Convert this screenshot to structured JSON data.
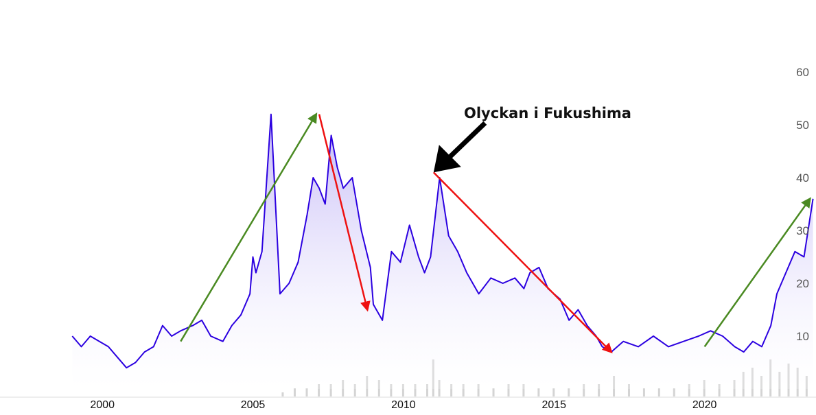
{
  "chart_data": {
    "type": "area",
    "title": "",
    "xlabel": "",
    "ylabel": "",
    "xlim": [
      1996.6,
      2023.7
    ],
    "ylim": [
      0,
      60
    ],
    "y_ticks": [
      10,
      20,
      30,
      40,
      50,
      60
    ],
    "x_ticks": [
      2000,
      2005,
      2010,
      2015,
      2020
    ],
    "y_axis_side": "right",
    "grid": false,
    "colors": {
      "line": "#2b00e0",
      "fill_top": "#b9acf5",
      "fill_bottom": "#ffffff",
      "volume": "#d4d4d4",
      "trend_up": "#4a8a22",
      "trend_down": "#ee1111",
      "annotation_arrow": "#000000"
    },
    "series": [
      {
        "type": "line",
        "x": [
          1999.0,
          1999.3,
          1999.6,
          1999.9,
          2000.2,
          2000.5,
          2000.8,
          2001.1,
          2001.4,
          2001.7,
          2002.0,
          2002.3,
          2002.6,
          2003.0,
          2003.3,
          2003.6,
          2004.0,
          2004.3,
          2004.6,
          2004.9,
          2005.0,
          2005.1,
          2005.3,
          2005.6,
          2005.9,
          2006.2,
          2006.5,
          2006.8,
          2007.0,
          2007.2,
          2007.4,
          2007.6,
          2007.8,
          2008.0,
          2008.3,
          2008.6,
          2008.9,
          2009.0,
          2009.1,
          2009.3,
          2009.6,
          2009.9,
          2010.2,
          2010.5,
          2010.7,
          2010.9,
          2011.0,
          2011.2,
          2011.5,
          2011.8,
          2012.1,
          2012.5,
          2012.9,
          2013.3,
          2013.7,
          2014.0,
          2014.2,
          2014.5,
          2014.8,
          2015.2,
          2015.5,
          2015.8,
          2016.1,
          2016.4,
          2016.6,
          2016.9,
          2017.3,
          2017.8,
          2018.3,
          2018.8,
          2019.3,
          2019.8,
          2020.2,
          2020.6,
          2021.0,
          2021.3,
          2021.6,
          2021.9,
          2022.2,
          2022.4,
          2022.7,
          2023.0,
          2023.3,
          2023.6
        ],
        "y": [
          10,
          8,
          10,
          9,
          8,
          6,
          4,
          5,
          7,
          8,
          12,
          10,
          11,
          12,
          13,
          10,
          9,
          12,
          14,
          18,
          25,
          22,
          26,
          52,
          18,
          20,
          24,
          33,
          40,
          38,
          35,
          48,
          42,
          38,
          40,
          30,
          23,
          16,
          15,
          13,
          26,
          24,
          31,
          25,
          22,
          25,
          30,
          40,
          29,
          26,
          22,
          18,
          21,
          20,
          21,
          19,
          22,
          23,
          19,
          17,
          13,
          15,
          12,
          10,
          8,
          7,
          9,
          8,
          10,
          8,
          9,
          10,
          11,
          10,
          8,
          7,
          9,
          8,
          12,
          18,
          22,
          26,
          25,
          36
        ]
      },
      {
        "type": "volume",
        "x": [
          2006.0,
          2006.4,
          2006.8,
          2007.2,
          2007.6,
          2008.0,
          2008.4,
          2008.8,
          2009.2,
          2009.6,
          2010.0,
          2010.4,
          2010.8,
          2011.0,
          2011.2,
          2011.6,
          2012.0,
          2012.5,
          2013.0,
          2013.5,
          2014.0,
          2014.5,
          2015.0,
          2015.5,
          2016.0,
          2016.5,
          2017.0,
          2017.5,
          2018.0,
          2018.5,
          2019.0,
          2019.5,
          2020.0,
          2020.5,
          2021.0,
          2021.3,
          2021.6,
          2021.9,
          2022.2,
          2022.5,
          2022.8,
          2023.1,
          2023.4
        ],
        "y": [
          1,
          2,
          2,
          3,
          3,
          4,
          3,
          5,
          4,
          3,
          3,
          3,
          3,
          9,
          4,
          3,
          3,
          3,
          2,
          3,
          3,
          2,
          2,
          2,
          3,
          3,
          5,
          3,
          2,
          2,
          2,
          3,
          4,
          3,
          4,
          6,
          7,
          5,
          9,
          6,
          8,
          7,
          5
        ]
      }
    ],
    "annotations": [
      {
        "text": "Olyckan i Fukushima",
        "type": "arrow",
        "color": "black",
        "points_to": [
          2011.0,
          41
        ]
      },
      {
        "type": "arrow",
        "color": "green",
        "from": [
          2002.6,
          9
        ],
        "to": [
          2007.1,
          52
        ]
      },
      {
        "type": "arrow",
        "color": "red",
        "from": [
          2007.2,
          52
        ],
        "to": [
          2008.8,
          15
        ]
      },
      {
        "type": "arrow",
        "color": "red",
        "from": [
          2011.0,
          41
        ],
        "to": [
          2016.9,
          7
        ]
      },
      {
        "type": "arrow",
        "color": "green",
        "from": [
          2020.0,
          8
        ],
        "to": [
          2023.5,
          36
        ]
      }
    ]
  }
}
